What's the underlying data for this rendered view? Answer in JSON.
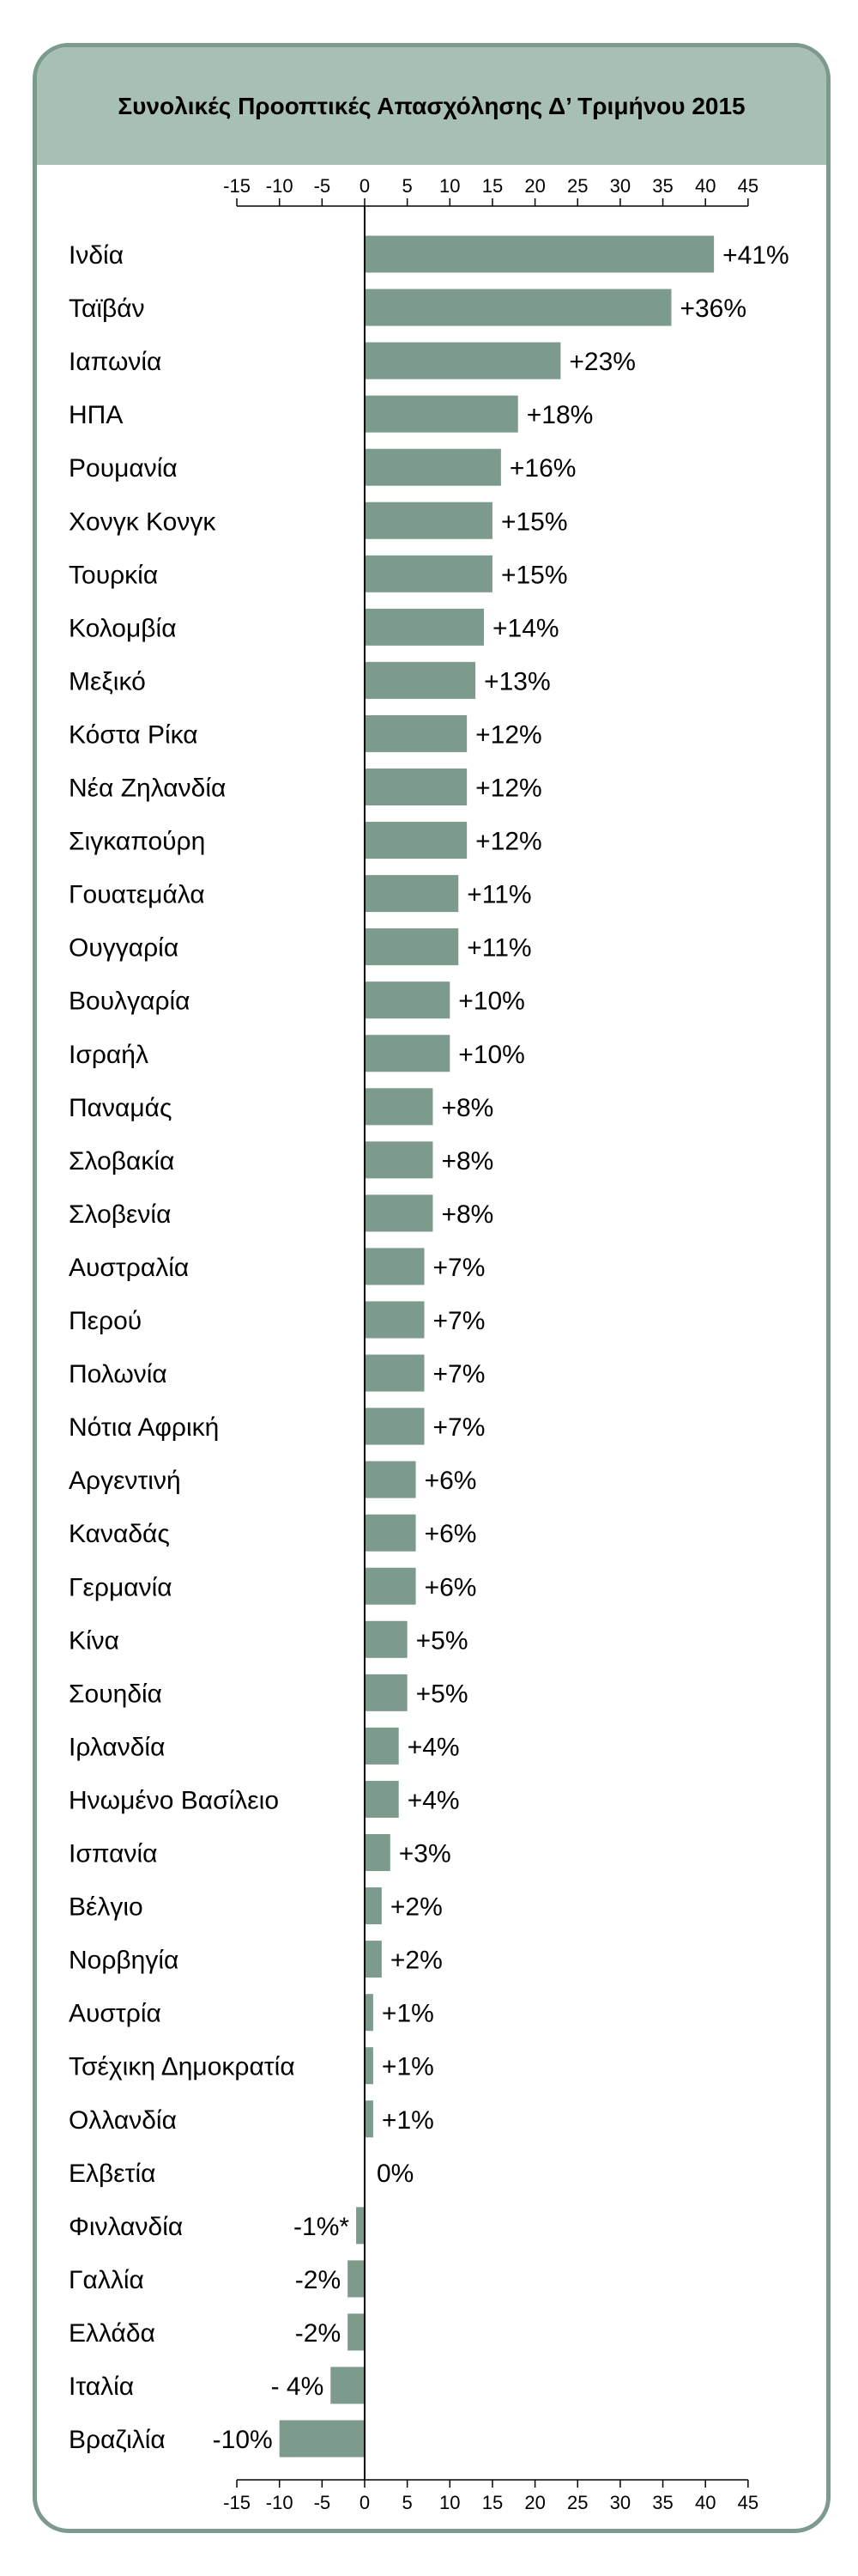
{
  "colors": {
    "bar": "#7c9b8c",
    "frame": "#7c9b8c",
    "title_band": "#a8bfb4",
    "text": "#000000"
  },
  "chart_data": {
    "type": "bar",
    "orientation": "horizontal",
    "title": "Συνολικές Προοπτικές Απασχόλησης Δ’ Τριμήνου 2015",
    "xlim": [
      -15,
      45
    ],
    "ticks": [
      "-15",
      "-10",
      "-5",
      "0",
      "5",
      "10",
      "15",
      "20",
      "25",
      "30",
      "35",
      "40",
      "45"
    ],
    "grid": false,
    "legend": "none",
    "categories": [
      "Ινδία",
      "Ταϊβάν",
      "Ιαπωνία",
      "ΗΠΑ",
      "Ρουμανία",
      "Χονγκ Κονγκ",
      "Τουρκία",
      "Κολομβία",
      "Μεξικό",
      "Κόστα Ρίκα",
      "Νέα Ζηλανδία",
      "Σιγκαπούρη",
      "Γουατεμάλα",
      "Ουγγαρία",
      "Βουλγαρία",
      "Ισραήλ",
      "Παναμάς",
      "Σλοβακία",
      "Σλοβενία",
      "Αυστραλία",
      "Περού",
      "Πολωνία",
      "Νότια Αφρική",
      "Αργεντινή",
      "Καναδάς",
      "Γερμανία",
      "Κίνα",
      "Σουηδία",
      "Ιρλανδία",
      "Ηνωμένο Βασίλειο",
      "Ισπανία",
      "Βέλγιο",
      "Νορβηγία",
      "Αυστρία",
      "Τσέχικη Δημοκρατία",
      "Ολλανδία",
      "Ελβετία",
      "Φινλανδία",
      "Γαλλία",
      "Ελλάδα",
      "Ιταλία",
      "Βραζιλία"
    ],
    "values": [
      41,
      36,
      23,
      18,
      16,
      15,
      15,
      14,
      13,
      12,
      12,
      12,
      11,
      11,
      10,
      10,
      8,
      8,
      8,
      7,
      7,
      7,
      7,
      6,
      6,
      6,
      5,
      5,
      4,
      4,
      3,
      2,
      2,
      1,
      1,
      1,
      0,
      -1,
      -2,
      -2,
      -4,
      -10
    ],
    "value_labels": [
      "+41%",
      "+36%",
      "+23%",
      "+18%",
      "+16%",
      "+15%",
      "+15%",
      "+14%",
      "+13%",
      "+12%",
      "+12%",
      "+12%",
      "+11%",
      "+11%",
      "+10%",
      "+10%",
      "+8%",
      "+8%",
      "+8%",
      "+7%",
      "+7%",
      "+7%",
      "+7%",
      "+6%",
      "+6%",
      "+6%",
      "+5%",
      "+5%",
      "+4%",
      "+4%",
      "+3%",
      "+2%",
      "+2%",
      "+1%",
      "+1%",
      "+1%",
      "0%",
      "-1%*",
      "-2%",
      "-2%",
      "- 4%",
      "-10%"
    ]
  }
}
